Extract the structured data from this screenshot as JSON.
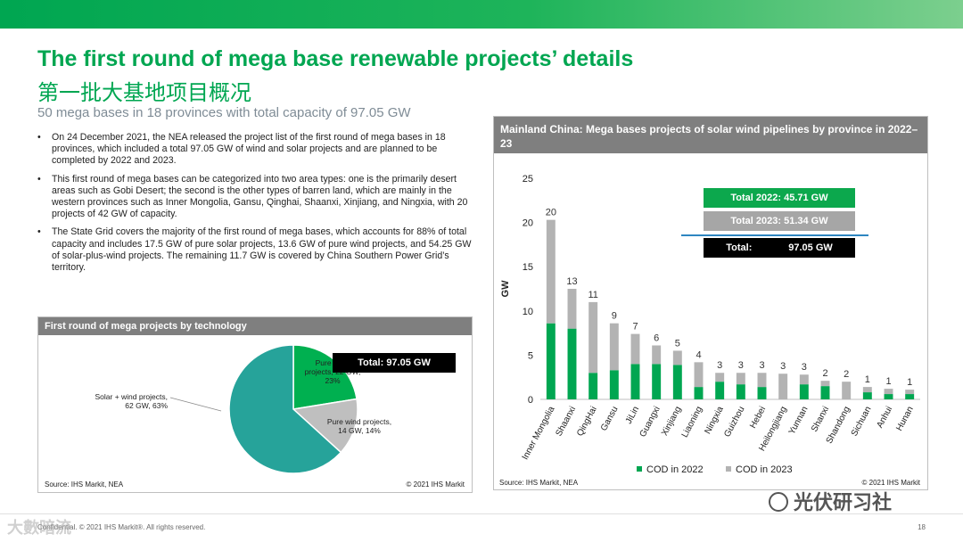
{
  "header": {
    "title_en": "The first round of mega base renewable projects’ details",
    "title_cn": "第一批大基地项目概况",
    "subtitle": "50 mega bases in 18 provinces with total capacity of 97.05 GW"
  },
  "bullets": [
    "On 24 December 2021, the NEA released the project list of the first round of mega bases in 18 provinces, which included a total 97.05 GW of wind and solar projects and are planned to be completed by 2022 and 2023.",
    "This first round of mega bases can be categorized into two area types: one is the primarily desert areas such as Gobi Desert; the second is the other types of barren land, which are mainly in the western provinces such as Inner Mongolia, Gansu, Qinghai, Shaanxi, Xinjiang, and Ningxia, with 20 projects of 42 GW of capacity.",
    "The State Grid covers the majority of the first round of mega bases, which accounts for 88% of total capacity and includes 17.5 GW of pure solar projects, 13.6 GW of pure wind projects, and 54.25 GW of solar-plus-wind projects. The remaining 11.7 GW is covered by China Southern Power Grid’s territory."
  ],
  "pie_panel": {
    "title": "First round of mega projects by technology",
    "total_label": "Total: 97.05 GW",
    "source": "Source: IHS Markit, NEA",
    "copyright": "© 2021 IHS Markit"
  },
  "bar_panel": {
    "title": "Mainland China: Mega bases projects of solar wind pipelines by province in 2022–23",
    "total_2022": "Total 2022: 45.71 GW",
    "total_2023": "Total 2023: 51.34 GW",
    "total_label": "Total:",
    "total_value": "97.05 GW",
    "source": "Source: IHS Markit, NEA",
    "copyright": "© 2021 IHS Markit"
  },
  "colors": {
    "green": "#00a651",
    "gray": "#b3b3b3",
    "teal": "#26a39a",
    "pie_green": "#00b050",
    "pie_gray": "#bfbfbf",
    "total_2022_bg": "#0ca84d",
    "total_2023_bg": "#a6a6a6",
    "total_bg": "#000000",
    "divider_blue": "#2e86c1"
  },
  "chart_data": [
    {
      "type": "pie",
      "title": "First round of mega projects by technology",
      "slices": [
        {
          "label": "Pure solar projects, 22 GW, 23%",
          "value": 22,
          "percent": 23,
          "color": "#00b050"
        },
        {
          "label": "Pure wind projects, 14 GW, 14%",
          "value": 14,
          "percent": 14,
          "color": "#bfbfbf"
        },
        {
          "label": "Solar + wind projects, 62 GW, 63%",
          "value": 62,
          "percent": 63,
          "color": "#26a39a"
        }
      ]
    },
    {
      "type": "bar",
      "stacked": true,
      "title": "Mainland China: Mega bases projects of solar wind pipelines by province in 2022–23",
      "ylabel": "GW",
      "ylim": [
        0,
        25
      ],
      "yticks": [
        0,
        5,
        10,
        15,
        20,
        25
      ],
      "categories": [
        "Inner Mongolia",
        "Shaanxi",
        "QingHai",
        "Gansu",
        "JiLin",
        "Guangxi",
        "Xinjiang",
        "Liaoning",
        "Ningxia",
        "Guizhou",
        "Hebei",
        "Heilongjiang",
        "Yunnan",
        "Shanxi",
        "Shandong",
        "Sichuan",
        "Anhui",
        "Hunan"
      ],
      "series": [
        {
          "name": "COD in 2022",
          "color": "#00a651",
          "values": [
            8.6,
            8.0,
            3.0,
            3.3,
            4.0,
            4.0,
            3.9,
            1.4,
            2.0,
            1.7,
            1.4,
            0,
            1.7,
            1.5,
            0,
            0.8,
            0.6,
            0.6
          ]
        },
        {
          "name": "COD in 2023",
          "color": "#b3b3b3",
          "values": [
            11.7,
            4.5,
            8.0,
            5.3,
            3.4,
            2.1,
            1.6,
            2.8,
            1.0,
            1.3,
            1.6,
            2.9,
            1.1,
            0.6,
            2.0,
            0.6,
            0.6,
            0.5
          ]
        }
      ],
      "labels": [
        "20",
        "13",
        "11",
        "9",
        "7",
        "6",
        "5",
        "4",
        "3",
        "3",
        "3",
        "3",
        "3",
        "2",
        "2",
        "1",
        "1",
        "1"
      ],
      "legend": "bottom"
    }
  ],
  "watermarks": {
    "left": "大數暗流",
    "right": "光伏研习社"
  },
  "footer": {
    "confidential": "Confidential. © 2021 IHS Markit®. All rights reserved.",
    "page": "18"
  }
}
